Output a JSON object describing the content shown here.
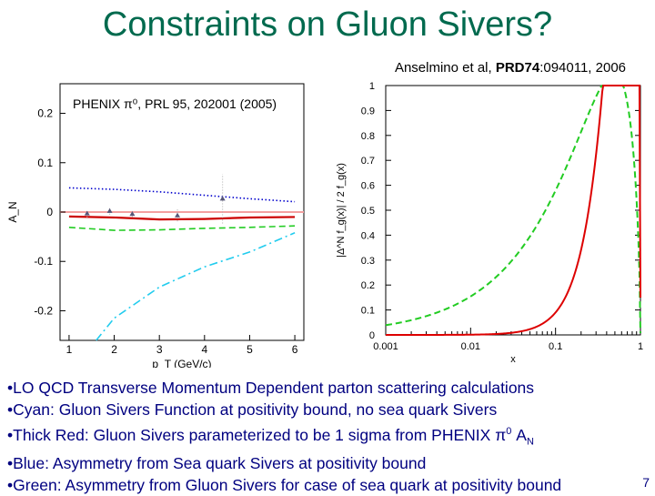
{
  "slide": {
    "title": "Constraints on Gluon Sivers?",
    "citation": {
      "authors": "Anselmino et al, ",
      "journal": "PRD74",
      "ref": ":094011, 2006"
    },
    "plot_label": "PHENIX π⁰, PRL 95, 202001 (2005)",
    "page_number": "7",
    "bullets": [
      {
        "text": "•LO QCD Transverse Momentum Dependent parton scattering calculations"
      },
      {
        "text": "•Cyan: Gluon Sivers Function at positivity bound, no sea quark Sivers"
      },
      {
        "text": "•Thick Red: Gluon Sivers parameterized to be 1 sigma from PHENIX π",
        "sup": "0",
        "tail": " A",
        "sub": "N"
      },
      {
        "text": "•Blue: Asymmetry from Sea quark Sivers at positivity bound"
      },
      {
        "text": "•Green: Asymmetry from Gluon Sivers for case of sea quark at positivity bound"
      }
    ]
  },
  "chart_data": [
    {
      "type": "line",
      "xlabel": "p_T (GeV/c)",
      "ylabel": "A_N",
      "xlim": [
        0.8,
        6.2
      ],
      "ylim": [
        -0.26,
        0.26
      ],
      "xticks": [
        1,
        2,
        3,
        4,
        5,
        6
      ],
      "yticks": [
        -0.2,
        -0.1,
        0,
        0.1,
        0.2
      ],
      "ytick_labels": [
        "-0.2",
        "-0.1",
        "0",
        "0.1",
        "0.2"
      ],
      "reference_line": {
        "y": 0,
        "color": "#f4a0a0"
      },
      "series": [
        {
          "color": "#0000cc",
          "style": "dotted",
          "x": [
            1,
            2,
            3,
            4,
            5,
            6
          ],
          "y": [
            0.049,
            0.046,
            0.041,
            0.034,
            0.027,
            0.021
          ]
        },
        {
          "color": "#cc0000",
          "style": "thick",
          "x": [
            1,
            2,
            3,
            4,
            5,
            6
          ],
          "y": [
            -0.009,
            -0.011,
            -0.015,
            -0.014,
            -0.011,
            -0.01
          ]
        },
        {
          "color": "#22cc22",
          "style": "dashed",
          "x": [
            1,
            2,
            3,
            4,
            5,
            6
          ],
          "y": [
            -0.031,
            -0.037,
            -0.036,
            -0.033,
            -0.031,
            -0.028
          ]
        },
        {
          "color": "#22ccee",
          "style": "dashdot",
          "x": [
            1.6,
            2,
            3,
            4,
            5,
            6
          ],
          "y": [
            -0.26,
            -0.215,
            -0.152,
            -0.111,
            -0.081,
            -0.042
          ]
        }
      ],
      "points": {
        "color": "#555577",
        "x": [
          1.4,
          1.9,
          2.4,
          3.4,
          4.4
        ],
        "y": [
          -0.003,
          0.002,
          -0.004,
          -0.007,
          0.027
        ],
        "err": [
          0.008,
          0.007,
          0.006,
          0.012,
          0.05
        ]
      }
    },
    {
      "type": "line",
      "xlabel": "x",
      "ylabel": "|Δ^N f_g(x)| / 2 f_g(x)",
      "xscale": "log",
      "xlim": [
        0.001,
        1
      ],
      "ylim": [
        0,
        1
      ],
      "xtick_values": [
        0.001,
        0.01,
        0.1,
        1
      ],
      "xtick_labels": [
        "0.001",
        "0.01",
        "0.1",
        "1"
      ],
      "ytick_values": [
        0,
        0.1,
        0.2,
        0.3,
        0.4,
        0.5,
        0.6,
        0.7,
        0.8,
        0.9,
        1
      ],
      "ytick_labels": [
        "0",
        "0.1",
        "0.2",
        "0.3",
        "0.4",
        "0.5",
        "0.6",
        "0.7",
        "0.8",
        "0.9",
        "1"
      ],
      "series": [
        {
          "color": "#22cc22",
          "style": "dashed",
          "curve": {
            "a": 0.6,
            "b": 0.63,
            "peak": 0.35
          }
        },
        {
          "color": "#dd0000",
          "style": "solid",
          "curve": {
            "a": 2.0,
            "b": 0.45,
            "peak": 0.36
          }
        }
      ]
    }
  ]
}
